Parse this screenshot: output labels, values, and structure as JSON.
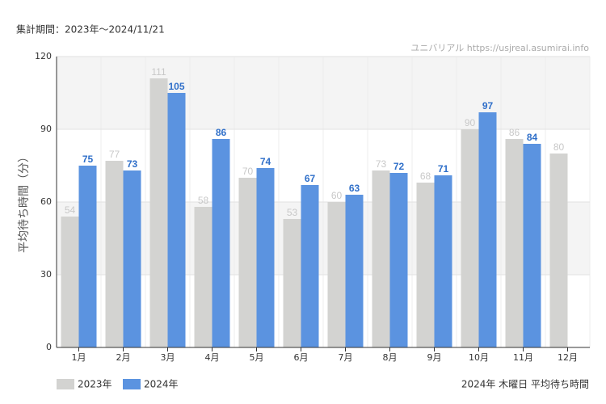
{
  "chart_data": {
    "type": "bar",
    "period": "集計期間：2023年～2024/11/21",
    "source": "ユニバリアル  https://usjreal.asumirai.info",
    "ylabel": "平均待ち時間（分）",
    "footer": "2024年 木曜日 平均待ち時間",
    "categories": [
      "1月",
      "2月",
      "3月",
      "4月",
      "5月",
      "6月",
      "7月",
      "8月",
      "9月",
      "10月",
      "11月",
      "12月"
    ],
    "series": [
      {
        "name": "2023年",
        "color": "#d3d3d1",
        "label_color": "#c8c8c8",
        "values": [
          54,
          77,
          111,
          58,
          70,
          53,
          60,
          73,
          68,
          90,
          86,
          80
        ]
      },
      {
        "name": "2024年",
        "color": "#5b93e0",
        "label_color": "#2f6fc9",
        "values": [
          75,
          73,
          105,
          86,
          74,
          67,
          63,
          72,
          71,
          97,
          84,
          null
        ]
      }
    ],
    "ylim": [
      0,
      120
    ],
    "yticks": [
      0,
      30,
      60,
      90,
      120
    ],
    "grid": true
  }
}
